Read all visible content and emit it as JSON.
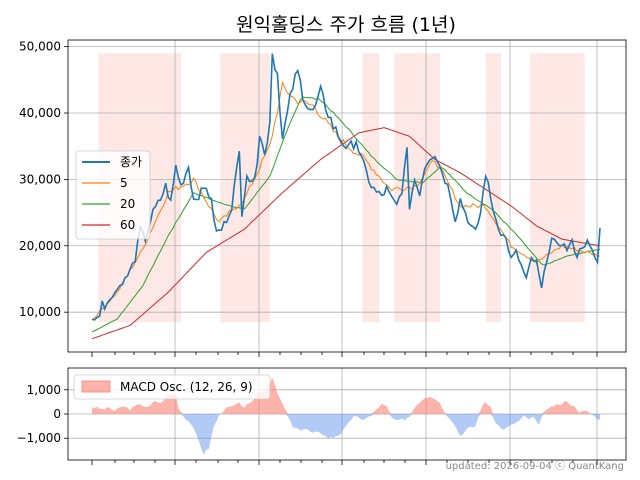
{
  "title": "원익홀딩스 주가 흐름 (1년)",
  "footer": "updated: 2026-09-04 ⓒ QuantKang",
  "colors": {
    "close": "#1f77b4",
    "ma5": "#ff7f0e",
    "ma20": "#2ca02c",
    "ma60": "#d62728",
    "shade": "#fde8e6",
    "osc_pos": "#fa8072",
    "osc_neg": "#6495ed",
    "grid": "#b0b0b0"
  },
  "chart_data": [
    {
      "type": "line",
      "panel": "price",
      "ylim": [
        4000,
        51000
      ],
      "yticks": [
        10000,
        20000,
        30000,
        40000,
        50000
      ],
      "ytick_labels": [
        "10,000",
        "20,000",
        "30,000",
        "40,000",
        "50,000"
      ],
      "n_points": 250,
      "legend": [
        "종가",
        "5",
        "20",
        "60"
      ],
      "legend_position": "left",
      "grid": true,
      "close_keypoints": [
        [
          0,
          8800
        ],
        [
          6,
          9500
        ],
        [
          8,
          12000
        ],
        [
          10,
          10500
        ],
        [
          14,
          12000
        ],
        [
          20,
          13500
        ],
        [
          28,
          15500
        ],
        [
          34,
          18000
        ],
        [
          38,
          22500
        ],
        [
          42,
          21000
        ],
        [
          48,
          25000
        ],
        [
          54,
          27000
        ],
        [
          58,
          29000
        ],
        [
          62,
          26500
        ],
        [
          66,
          32000
        ],
        [
          70,
          29000
        ],
        [
          76,
          32000
        ],
        [
          80,
          27000
        ],
        [
          86,
          28000
        ],
        [
          90,
          29000
        ],
        [
          94,
          26500
        ],
        [
          98,
          22000
        ],
        [
          102,
          22500
        ],
        [
          106,
          24000
        ],
        [
          110,
          26000
        ],
        [
          116,
          34000
        ],
        [
          118,
          25000
        ],
        [
          122,
          31000
        ],
        [
          126,
          29000
        ],
        [
          130,
          33000
        ],
        [
          132,
          37000
        ],
        [
          136,
          33500
        ],
        [
          140,
          39000
        ],
        [
          142,
          49000
        ],
        [
          146,
          46000
        ],
        [
          150,
          36000
        ],
        [
          154,
          40000
        ],
        [
          158,
          44000
        ],
        [
          162,
          46000
        ],
        [
          166,
          43000
        ],
        [
          170,
          41000
        ],
        [
          174,
          40000
        ],
        [
          180,
          43000
        ],
        [
          186,
          40000
        ],
        [
          190,
          38000
        ],
        [
          196,
          36000
        ],
        [
          202,
          34500
        ],
        [
          208,
          36000
        ],
        [
          212,
          33000
        ],
        [
          216,
          31000
        ],
        [
          220,
          29000
        ],
        [
          224,
          28000
        ],
        [
          228,
          27500
        ],
        [
          232,
          28500
        ],
        [
          236,
          27000
        ],
        [
          240,
          26000
        ],
        [
          244,
          28500
        ],
        [
          248,
          34000
        ],
        [
          250,
          26000
        ],
        [
          254,
          30000
        ],
        [
          258,
          28000
        ],
        [
          262,
          32000
        ],
        [
          266,
          33500
        ],
        [
          270,
          34000
        ],
        [
          274,
          32000
        ],
        [
          278,
          30000
        ],
        [
          282,
          28000
        ],
        [
          286,
          24000
        ],
        [
          290,
          27000
        ],
        [
          294,
          25000
        ],
        [
          298,
          23000
        ],
        [
          302,
          22000
        ],
        [
          306,
          25000
        ],
        [
          310,
          31000
        ],
        [
          314,
          27000
        ],
        [
          318,
          24000
        ],
        [
          322,
          22000
        ],
        [
          326,
          21000
        ],
        [
          330,
          18000
        ],
        [
          334,
          19000
        ],
        [
          338,
          17000
        ],
        [
          342,
          15000
        ],
        [
          346,
          18000
        ],
        [
          350,
          17500
        ],
        [
          354,
          13500
        ],
        [
          358,
          18000
        ],
        [
          362,
          21000
        ],
        [
          366,
          20000
        ],
        [
          370,
          20500
        ],
        [
          374,
          19500
        ],
        [
          378,
          20500
        ],
        [
          382,
          18500
        ],
        [
          386,
          20000
        ],
        [
          390,
          20500
        ],
        [
          394,
          19000
        ],
        [
          398,
          17500
        ],
        [
          400,
          22500
        ]
      ],
      "ma5_keypoints": [
        [
          0,
          8800
        ],
        [
          20,
          13000
        ],
        [
          40,
          19500
        ],
        [
          60,
          28000
        ],
        [
          80,
          30000
        ],
        [
          100,
          23500
        ],
        [
          120,
          27000
        ],
        [
          140,
          35000
        ],
        [
          150,
          44000
        ],
        [
          160,
          42000
        ],
        [
          175,
          41000
        ],
        [
          195,
          36000
        ],
        [
          215,
          33000
        ],
        [
          235,
          28500
        ],
        [
          255,
          29000
        ],
        [
          270,
          33000
        ],
        [
          290,
          26000
        ],
        [
          310,
          26000
        ],
        [
          330,
          20000
        ],
        [
          350,
          17500
        ],
        [
          370,
          20000
        ],
        [
          400,
          18500
        ]
      ],
      "ma20_keypoints": [
        [
          0,
          7000
        ],
        [
          20,
          9000
        ],
        [
          40,
          14000
        ],
        [
          60,
          21500
        ],
        [
          80,
          28000
        ],
        [
          100,
          26500
        ],
        [
          120,
          25500
        ],
        [
          140,
          30500
        ],
        [
          155,
          38000
        ],
        [
          165,
          42500
        ],
        [
          180,
          42000
        ],
        [
          200,
          38000
        ],
        [
          220,
          33500
        ],
        [
          240,
          30000
        ],
        [
          260,
          29500
        ],
        [
          275,
          32000
        ],
        [
          295,
          28000
        ],
        [
          315,
          25500
        ],
        [
          335,
          21500
        ],
        [
          355,
          17000
        ],
        [
          375,
          18500
        ],
        [
          400,
          19500
        ]
      ],
      "ma60_keypoints": [
        [
          0,
          6000
        ],
        [
          30,
          8000
        ],
        [
          60,
          13000
        ],
        [
          90,
          19000
        ],
        [
          120,
          22500
        ],
        [
          150,
          28000
        ],
        [
          180,
          33000
        ],
        [
          210,
          37000
        ],
        [
          230,
          37800
        ],
        [
          250,
          36500
        ],
        [
          270,
          33000
        ],
        [
          290,
          31000
        ],
        [
          310,
          28500
        ],
        [
          330,
          26000
        ],
        [
          350,
          23000
        ],
        [
          370,
          21000
        ],
        [
          400,
          20000
        ]
      ],
      "shaded_ranges": [
        [
          5,
          70
        ],
        [
          101,
          140
        ],
        [
          213,
          226
        ],
        [
          238,
          274
        ],
        [
          310,
          322
        ],
        [
          345,
          388
        ]
      ]
    },
    {
      "type": "area",
      "panel": "macd",
      "series_name": "MACD Osc. (12, 26, 9)",
      "ylim": [
        -1900,
        1900
      ],
      "yticks": [
        -1000,
        0,
        1000
      ],
      "ytick_labels": [
        "−1,000",
        "0",
        "1,000"
      ],
      "grid": true,
      "osc_keypoints": [
        [
          0,
          300
        ],
        [
          8,
          200
        ],
        [
          14,
          250
        ],
        [
          18,
          120
        ],
        [
          24,
          320
        ],
        [
          30,
          200
        ],
        [
          38,
          420
        ],
        [
          44,
          250
        ],
        [
          50,
          550
        ],
        [
          54,
          430
        ],
        [
          58,
          700
        ],
        [
          62,
          850
        ],
        [
          66,
          800
        ],
        [
          68,
          300
        ],
        [
          72,
          -80
        ],
        [
          78,
          -400
        ],
        [
          84,
          -1100
        ],
        [
          88,
          -1650
        ],
        [
          92,
          -1400
        ],
        [
          96,
          -500
        ],
        [
          100,
          -80
        ],
        [
          104,
          200
        ],
        [
          110,
          300
        ],
        [
          116,
          420
        ],
        [
          120,
          300
        ],
        [
          126,
          450
        ],
        [
          130,
          900
        ],
        [
          136,
          1000
        ],
        [
          142,
          1500
        ],
        [
          146,
          850
        ],
        [
          150,
          400
        ],
        [
          154,
          -50
        ],
        [
          158,
          -550
        ],
        [
          162,
          -650
        ],
        [
          168,
          -600
        ],
        [
          174,
          -800
        ],
        [
          180,
          -750
        ],
        [
          186,
          -1000
        ],
        [
          190,
          -950
        ],
        [
          196,
          -800
        ],
        [
          202,
          -400
        ],
        [
          206,
          -60
        ],
        [
          212,
          -250
        ],
        [
          216,
          -150
        ],
        [
          220,
          -80
        ],
        [
          224,
          200
        ],
        [
          228,
          400
        ],
        [
          232,
          300
        ],
        [
          236,
          -150
        ],
        [
          240,
          -300
        ],
        [
          246,
          -200
        ],
        [
          250,
          -100
        ],
        [
          254,
          300
        ],
        [
          258,
          500
        ],
        [
          262,
          700
        ],
        [
          266,
          750
        ],
        [
          270,
          620
        ],
        [
          274,
          500
        ],
        [
          276,
          200
        ],
        [
          280,
          -50
        ],
        [
          284,
          -300
        ],
        [
          290,
          -900
        ],
        [
          296,
          -600
        ],
        [
          302,
          -500
        ],
        [
          306,
          200
        ],
        [
          310,
          500
        ],
        [
          314,
          300
        ],
        [
          316,
          -200
        ],
        [
          322,
          -600
        ],
        [
          326,
          -600
        ],
        [
          332,
          -400
        ],
        [
          336,
          -300
        ],
        [
          340,
          -100
        ],
        [
          344,
          -200
        ],
        [
          348,
          -150
        ],
        [
          352,
          -500
        ],
        [
          356,
          150
        ],
        [
          360,
          200
        ],
        [
          364,
          350
        ],
        [
          368,
          350
        ],
        [
          372,
          500
        ],
        [
          376,
          450
        ],
        [
          380,
          300
        ],
        [
          384,
          100
        ],
        [
          390,
          100
        ],
        [
          396,
          -100
        ],
        [
          400,
          -250
        ]
      ]
    }
  ]
}
